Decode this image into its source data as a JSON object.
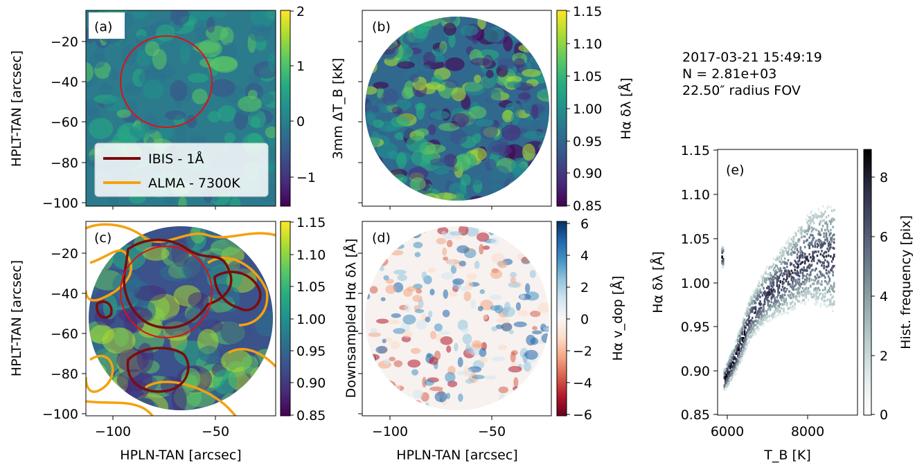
{
  "header": {
    "date": "2017-03-21 15:49:19",
    "count": "N = 2.81e+03",
    "fov": "22.50″ radius FOV"
  },
  "panels": {
    "a": {
      "label": "(a)",
      "ylabel": "HPLT-TAN [arcsec]",
      "yticks": [
        "−20",
        "−40",
        "−60",
        "−80",
        "−100"
      ],
      "cbar_label": "3mm ΔT_B [kK]",
      "cbar_ticks": [
        "2",
        "1",
        "0",
        "−1"
      ],
      "legend": [
        {
          "label": "IBIS - 1Å",
          "color": "#7b0c0c"
        },
        {
          "label": "ALMA - 7300K",
          "color": "#f5a10f"
        }
      ]
    },
    "b": {
      "label": "(b)",
      "cbar_label": "Hα δλ [Å]",
      "cbar_ticks": [
        "1.15",
        "1.10",
        "1.05",
        "1.00",
        "0.95",
        "0.90",
        "0.85"
      ]
    },
    "c": {
      "label": "(c)",
      "ylabel": "HPLT-TAN [arcsec]",
      "yticks": [
        "−20",
        "−40",
        "−60",
        "−80",
        "−100"
      ],
      "xlabel": "HPLN-TAN [arcsec]",
      "xticks": [
        "−100",
        "−50"
      ],
      "cbar_label": "Downsampled Hα δλ [Å]",
      "cbar_ticks": [
        "1.15",
        "1.10",
        "1.05",
        "1.00",
        "0.95",
        "0.90",
        "0.85"
      ]
    },
    "d": {
      "label": "(d)",
      "xlabel": "HPLN-TAN [arcsec]",
      "xticks": [
        "−100",
        "−50"
      ],
      "cbar_label": "Hα v_dop [Å]",
      "cbar_ticks": [
        "6",
        "4",
        "2",
        "0",
        "−2",
        "−4",
        "−6"
      ]
    },
    "e": {
      "label": "(e)",
      "ylabel": "Hα δλ [Å]",
      "yticks": [
        "1.15",
        "1.10",
        "1.05",
        "1.00",
        "0.95",
        "0.90",
        "0.85"
      ],
      "xlabel": "T_B [K]",
      "xticks": [
        "6000",
        "8000"
      ],
      "cbar_label": "Hist. frequency [pix]",
      "cbar_ticks": [
        "8",
        "6",
        "4",
        "2",
        "0"
      ]
    }
  },
  "colors": {
    "viridis": [
      "#440154",
      "#472c7a",
      "#3b518b",
      "#2c718e",
      "#21908d",
      "#27ad81",
      "#5cc863",
      "#aadc32",
      "#fde725"
    ],
    "rdbu": [
      "#67001f",
      "#b2182b",
      "#d6604d",
      "#f4a582",
      "#fddbc7",
      "#f7f7f7",
      "#d1e5f0",
      "#92c5de",
      "#4393c3",
      "#2166ac",
      "#053061"
    ],
    "bone_r": [
      "#ffffff",
      "#e0ebeb",
      "#b8cbcb",
      "#8fa5a9",
      "#6b7b8c",
      "#4b516b",
      "#2c2c45",
      "#000000"
    ],
    "circle": "#e01010",
    "ibis_contour": "#7b0c0c",
    "alma_contour": "#f5a10f"
  },
  "chart_data": [
    {
      "type": "heatmap",
      "panel": "a",
      "title": "",
      "xlabel": "",
      "ylabel": "HPLT-TAN [arcsec]",
      "xlim": [
        -112,
        -20
      ],
      "ylim": [
        -102,
        -5
      ],
      "colorbar_range": [
        -1.5,
        2
      ],
      "colorbar_label": "3mm ΔT_B [kK]",
      "overlay_circle": {
        "center": [
          -75,
          -40
        ],
        "radius": 22.5
      }
    },
    {
      "type": "heatmap",
      "panel": "b",
      "xlim": [
        -112,
        -20
      ],
      "ylim": [
        -102,
        -5
      ],
      "colorbar_range": [
        0.85,
        1.15
      ],
      "colorbar_label": "Hα δλ [Å]"
    },
    {
      "type": "heatmap",
      "panel": "c",
      "xlabel": "HPLN-TAN [arcsec]",
      "ylabel": "HPLT-TAN [arcsec]",
      "xlim": [
        -112,
        -20
      ],
      "ylim": [
        -102,
        -5
      ],
      "colorbar_range": [
        0.85,
        1.15
      ],
      "colorbar_label": "Downsampled Hα δλ [Å]",
      "legend": [
        "IBIS - 1Å",
        "ALMA - 7300K"
      ]
    },
    {
      "type": "heatmap",
      "panel": "d",
      "xlabel": "HPLN-TAN [arcsec]",
      "xlim": [
        -112,
        -20
      ],
      "ylim": [
        -102,
        -5
      ],
      "colorbar_range": [
        -6,
        6
      ],
      "colorbar_label": "Hα v_dop [Å]"
    },
    {
      "type": "heatmap",
      "panel": "e",
      "xlabel": "T_B [K]",
      "ylabel": "Hα δλ [Å]",
      "xlim": [
        5850,
        9600
      ],
      "ylim": [
        0.85,
        1.15
      ],
      "colorbar_range": [
        0,
        8.8
      ],
      "colorbar_label": "Hist. frequency [pix]",
      "trend": [
        {
          "x": 6000,
          "y": 0.89
        },
        {
          "x": 6300,
          "y": 0.915
        },
        {
          "x": 6700,
          "y": 0.96
        },
        {
          "x": 7100,
          "y": 0.985
        },
        {
          "x": 7500,
          "y": 1.0
        },
        {
          "x": 7900,
          "y": 1.015
        },
        {
          "x": 8300,
          "y": 1.03
        },
        {
          "x": 8600,
          "y": 1.03
        }
      ]
    }
  ]
}
